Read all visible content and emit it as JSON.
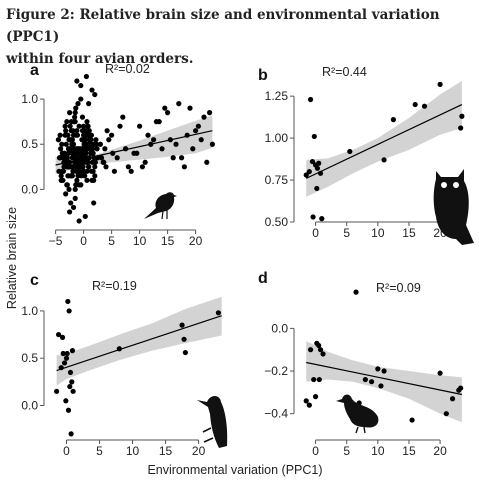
{
  "caption": {
    "line1": "Figure 2: Relative brain size and environmental variation (PPC1)",
    "line2": "within four avian orders."
  },
  "figure": {
    "ylabel": "Relative brain size",
    "xlabel": "Environmental variation (PPC1)"
  },
  "colors": {
    "point": "#000000",
    "line": "#000000",
    "band": "#d3d3d3",
    "axis": "#555555"
  },
  "chart_data": [
    {
      "type": "scatter",
      "panel_label": "a",
      "annotation": "R²=0.02",
      "icon": "small-songbird-silhouette",
      "xlim": [
        -6,
        24
      ],
      "ylim": [
        -0.45,
        1.3
      ],
      "xticks": [
        -5,
        0,
        5,
        10,
        15,
        20
      ],
      "xtick_labels": [
        "−5",
        "0",
        "5",
        "10",
        "15",
        "20"
      ],
      "yticks": [
        0,
        0.5,
        1.0
      ],
      "ytick_labels": [
        "0.0",
        "0.5",
        "1.0"
      ],
      "fit": {
        "x": [
          -5,
          23
        ],
        "y": [
          0.27,
          0.65
        ]
      },
      "band": {
        "x": [
          -5,
          -2,
          0,
          5,
          10,
          15,
          20,
          23
        ],
        "upper": [
          0.36,
          0.33,
          0.34,
          0.44,
          0.54,
          0.65,
          0.76,
          0.82
        ],
        "lower": [
          0.17,
          0.22,
          0.25,
          0.3,
          0.33,
          0.36,
          0.4,
          0.46
        ]
      },
      "points": {
        "x": [
          -4.5,
          -4.0,
          -3.0,
          -2.0,
          -1.0,
          0.0,
          1.0,
          -1.5,
          0.5,
          -3.5,
          -2.5,
          -0.5,
          1.5,
          2.0,
          -4.2,
          -1.8,
          0.2,
          2.5,
          -3.2,
          -0.8,
          0.8,
          -2.2,
          1.2,
          -1.2,
          -3.8,
          -2.8,
          -0.2,
          0.6,
          1.8,
          -1.6,
          -0.4,
          0.4,
          1.4,
          2.2,
          -2.6,
          -1.4,
          -3.0,
          -2.0,
          -1.0,
          0.0,
          1.0,
          2.0,
          -3.6,
          -2.4,
          -1.2,
          0.1,
          1.1,
          -0.6,
          -4.3,
          -3.1,
          -1.9,
          -0.7,
          0.3,
          1.6,
          2.4,
          -2.7,
          -1.5,
          -0.3,
          0.9,
          -3.4,
          -2.3,
          -1.1,
          0.5,
          1.7,
          -4.1,
          -2.9,
          -0.9,
          0.7,
          -1.7,
          -0.1,
          1.3,
          -3.3,
          -2.1,
          -0.4,
          0.2,
          1.9,
          -2.5,
          -1.3,
          0.6,
          -3.7,
          -1.8,
          0.0,
          1.0,
          -2.6,
          -1.0,
          0.4,
          2.1,
          -3.5,
          -2.0,
          -0.5,
          1.5,
          -4.4,
          -2.8,
          -1.6,
          0.8,
          -3.9,
          -2.2,
          -0.7,
          1.2,
          -1.4,
          0.3,
          -3.0,
          -1.9,
          -0.2,
          1.4,
          -2.4,
          -0.8,
          0.9,
          -3.2,
          -1.1,
          0.1,
          -2.7,
          -0.6,
          1.1,
          -4.0,
          -2.1,
          0.5,
          -1.5,
          -0.3,
          1.8,
          -3.6,
          -2.3,
          -1.2,
          0.7,
          -2.9,
          -0.9,
          0.2,
          -1.7,
          0.0,
          1.6,
          -3.3,
          -2.5,
          -0.4,
          0.8,
          -2.0,
          -1.0,
          0.4,
          -3.8,
          -1.3,
          2.3,
          -2.6,
          -0.1,
          1.0,
          -1.6,
          0.6,
          -3.1,
          -0.8,
          1.3,
          -2.2,
          -0.5,
          0.9,
          -4.2,
          -1.4,
          0.3,
          -2.8,
          -1.1,
          1.7,
          -3.4,
          -0.2,
          -2.0,
          0.1,
          1.5,
          -1.8,
          -0.6,
          0.7,
          -3.0,
          -2.4,
          0.0,
          -1.2,
          1.2,
          -2.7,
          -0.9,
          0.5,
          -3.7,
          -1.5,
          2.0,
          -0.3,
          -2.3,
          0.8,
          -1.0,
          -3.5,
          -0.7,
          1.1,
          -2.1,
          0.2,
          -1.6,
          -0.4,
          1.4,
          -2.9,
          -1.3,
          0.6,
          3.0,
          3.5,
          4.0,
          4.5,
          3.2,
          3.8,
          5.0,
          5.5,
          6.0,
          7.0,
          8.0,
          9.0,
          10.0,
          11.0,
          12.0,
          13.0,
          14.0,
          15.0,
          16.0,
          17.0,
          18.0,
          19.0,
          20.0,
          21.0,
          22.0,
          23.0,
          6.5,
          7.5,
          9.5,
          11.5,
          13.5,
          15.5,
          17.5,
          19.5,
          21.5,
          4.2,
          5.2,
          8.5,
          12.5,
          16.5,
          18.5,
          20.5,
          22.5,
          3.6,
          10.5,
          14.5,
          1.0,
          -1.0,
          0.0,
          -2.0,
          2.0,
          -0.5,
          0.5,
          1.5,
          -1.5,
          -2.5,
          -0.8,
          0.3,
          -3.0,
          1.8,
          -1.2,
          0.9
        ],
        "y": [
          0.55,
          0.1,
          0.75,
          0.35,
          0.95,
          0.2,
          0.65,
          -0.1,
          0.45,
          0.3,
          0.85,
          0.05,
          0.4,
          0.25,
          0.6,
          0.5,
          0.15,
          0.35,
          -0.05,
          0.7,
          0.3,
          0.15,
          0.55,
          0.25,
          0.4,
          0.6,
          0.8,
          0.1,
          0.5,
          0.35,
          0.45,
          0.65,
          0.2,
          0.55,
          0.0,
          0.9,
          0.25,
          0.5,
          0.4,
          0.7,
          0.35,
          0.15,
          0.2,
          0.45,
          0.1,
          0.55,
          0.6,
          0.3,
          0.35,
          0.5,
          0.65,
          0.2,
          0.4,
          0.3,
          0.45,
          0.15,
          0.75,
          0.55,
          0.25,
          0.4,
          -0.15,
          0.6,
          0.3,
          0.2,
          0.45,
          0.05,
          0.35,
          0.5,
          0.45,
          0.25,
          0.4,
          0.7,
          0.55,
          0.15,
          0.6,
          0.35,
          0.3,
          0.2,
          0.75,
          0.1,
          0.6,
          0.35,
          0.5,
          0.55,
          0.45,
          0.4,
          0.3,
          0.25,
          0.4,
          1.0,
          0.1,
          0.2,
          0.15,
          0.3,
          0.6,
          0.5,
          0.65,
          0.25,
          0.45,
          0.05,
          0.55,
          0.35,
          0.2,
          0.4,
          0.6,
          0.7,
          0.3,
          0.25,
          0.65,
          0.35,
          0.5,
          0.45,
          0.2,
          0.55,
          0.15,
          0.5,
          0.35,
          0.85,
          0.4,
          0.1,
          0.35,
          0.55,
          0.65,
          0.45,
          0.3,
          0.2,
          0.5,
          0.75,
          0.3,
          0.45,
          0.6,
          0.25,
          0.35,
          0.7,
          0.55,
          0.15,
          0.4,
          0.2,
          0.3,
          0.5,
          0.25,
          0.45,
          0.65,
          0.4,
          0.2,
          0.35,
          0.05,
          0.55,
          0.75,
          0.3,
          0.45,
          0.35,
          0.6,
          0.5,
          0.25,
          0.2,
          0.4,
          0.35,
          0.65,
          0.25,
          0.5,
          0.45,
          -0.2,
          0.35,
          0.7,
          0.3,
          0.45,
          0.6,
          0.2,
          0.55,
          0.4,
          0.3,
          0.65,
          0.35,
          0.25,
          0.5,
          0.4,
          0.15,
          0.6,
          0.35,
          0.3,
          0.45,
          0.55,
          0.25,
          0.4,
          0.8,
          0.3,
          0.5,
          0.35,
          0.45,
          0.6,
          0.5,
          0.3,
          0.25,
          0.55,
          0.35,
          0.45,
          0.6,
          0.2,
          0.35,
          0.8,
          0.25,
          0.4,
          0.7,
          0.3,
          0.5,
          0.75,
          0.45,
          0.85,
          0.35,
          0.95,
          0.25,
          0.9,
          0.65,
          0.55,
          0.3,
          0.5,
          0.7,
          0.45,
          0.4,
          0.6,
          0.75,
          0.55,
          0.35,
          0.45,
          0.8,
          0.65,
          0.4,
          0.2,
          0.55,
          0.5,
          0.6,
          0.7,
          0.85,
          0.3,
          0.25,
          0.9,
          0.45,
          0.35,
          0.2,
          0.15,
          1.05,
          1.15,
          1.25,
          1.1,
          0.0,
          -0.25,
          -0.35,
          -0.3,
          0.05,
          -0.15,
          1.2,
          0.95
        ],
        "r": [
          2.6
        ]
      }
    },
    {
      "type": "scatter",
      "panel_label": "b",
      "annotation": "R²=0.44",
      "icon": "owl-silhouette",
      "xlim": [
        -2.5,
        24
      ],
      "ylim": [
        0.5,
        1.37
      ],
      "xticks": [
        0,
        5,
        10,
        15,
        20
      ],
      "xtick_labels": [
        "0",
        "5",
        "10",
        "15",
        "20"
      ],
      "yticks": [
        0.5,
        0.75,
        1.0,
        1.25
      ],
      "ytick_labels": [
        "0.50",
        "0.75",
        "1.00",
        "1.25"
      ],
      "fit": {
        "x": [
          -1.5,
          23.5
        ],
        "y": [
          0.76,
          1.2
        ]
      },
      "band": {
        "x": [
          -1.5,
          2,
          6,
          10,
          15,
          20,
          23.5
        ],
        "upper": [
          0.87,
          0.88,
          0.93,
          1.0,
          1.12,
          1.26,
          1.34
        ],
        "lower": [
          0.65,
          0.71,
          0.79,
          0.86,
          0.93,
          1.02,
          1.06
        ]
      },
      "points": {
        "x": [
          -1.5,
          -1.0,
          -0.5,
          -0.2,
          0.0,
          0.3,
          0.5,
          -0.8,
          0.2,
          0.8,
          -0.4,
          1.0,
          5.5,
          11.0,
          12.5,
          16.0,
          17.5,
          20.0,
          23.5,
          23.3
        ],
        "y": [
          0.78,
          0.8,
          0.86,
          1.01,
          0.84,
          0.82,
          0.85,
          1.23,
          0.7,
          0.79,
          0.53,
          0.52,
          0.92,
          0.87,
          1.11,
          1.2,
          1.19,
          1.32,
          1.13,
          1.06
        ],
        "r": [
          2.6
        ]
      }
    },
    {
      "type": "scatter",
      "panel_label": "c",
      "annotation": "R²=0.19",
      "icon": "woodpecker-silhouette",
      "xlim": [
        -2.5,
        24
      ],
      "ylim": [
        -0.28,
        1.2
      ],
      "xticks": [
        0,
        5,
        10,
        15,
        20
      ],
      "xtick_labels": [
        "0",
        "5",
        "10",
        "15",
        "20"
      ],
      "yticks": [
        0,
        0.5,
        1.0
      ],
      "ytick_labels": [
        "0.0",
        "0.5",
        "1.0"
      ],
      "fit": {
        "x": [
          -1.5,
          23.5
        ],
        "y": [
          0.37,
          0.95
        ]
      },
      "band": {
        "x": [
          -1.5,
          0,
          3,
          8,
          13,
          18,
          23.5
        ],
        "upper": [
          0.53,
          0.55,
          0.62,
          0.75,
          0.87,
          1.02,
          1.15
        ],
        "lower": [
          0.21,
          0.28,
          0.36,
          0.48,
          0.58,
          0.66,
          0.74
        ]
      },
      "points": {
        "x": [
          -1.2,
          -0.8,
          -0.5,
          -0.3,
          0.0,
          0.2,
          0.4,
          0.6,
          0.8,
          1.0,
          -0.6,
          0.1,
          0.5,
          -0.1,
          0.3,
          0.7,
          -1.5,
          0.9,
          8.0,
          17.5,
          17.8,
          18.0,
          23.0
        ],
        "y": [
          0.75,
          0.4,
          0.55,
          0.45,
          0.5,
          1.1,
          1.0,
          0.35,
          0.25,
          0.15,
          0.72,
          0.55,
          0.2,
          0.05,
          -0.05,
          -0.3,
          0.15,
          0.58,
          0.6,
          0.85,
          0.7,
          0.56,
          0.98
        ],
        "r": [
          2.6
        ]
      }
    },
    {
      "type": "scatter",
      "panel_label": "d",
      "annotation": "R²=0.09",
      "icon": "grouse-silhouette",
      "xlim": [
        -2.5,
        24
      ],
      "ylim": [
        -0.5,
        0.18
      ],
      "xticks": [
        0,
        5,
        10,
        15,
        20
      ],
      "xtick_labels": [
        "0",
        "5",
        "10",
        "15",
        "20"
      ],
      "yticks": [
        0,
        -0.2,
        -0.4
      ],
      "ytick_labels": [
        "0.0",
        "−0.2",
        "−0.4"
      ],
      "fit": {
        "x": [
          -1.5,
          23.5
        ],
        "y": [
          -0.16,
          -0.31
        ]
      },
      "band": {
        "x": [
          -1.5,
          2,
          6,
          10,
          15,
          20,
          23.5
        ],
        "upper": [
          -0.06,
          -0.11,
          -0.15,
          -0.18,
          -0.2,
          -0.22,
          -0.23
        ],
        "lower": [
          -0.25,
          -0.24,
          -0.25,
          -0.28,
          -0.33,
          -0.4,
          -0.44
        ]
      },
      "points": {
        "x": [
          -1.5,
          -0.8,
          -0.3,
          0.2,
          0.5,
          0.8,
          1.2,
          -1.0,
          0.0,
          0.6,
          7.0,
          8.0,
          9.0,
          10.0,
          10.5,
          11.0,
          15.5,
          20.0,
          21.0,
          22.0,
          23.0,
          23.3,
          6.5,
          6.0
        ],
        "y": [
          -0.34,
          -0.1,
          -0.24,
          -0.07,
          -0.08,
          -0.1,
          -0.12,
          -0.36,
          -0.32,
          -0.24,
          -0.35,
          -0.24,
          -0.25,
          -0.19,
          -0.27,
          -0.2,
          -0.43,
          -0.21,
          -0.4,
          -0.33,
          -0.29,
          -0.28,
          0.17,
          -0.39
        ],
        "r": [
          2.6
        ]
      }
    }
  ]
}
